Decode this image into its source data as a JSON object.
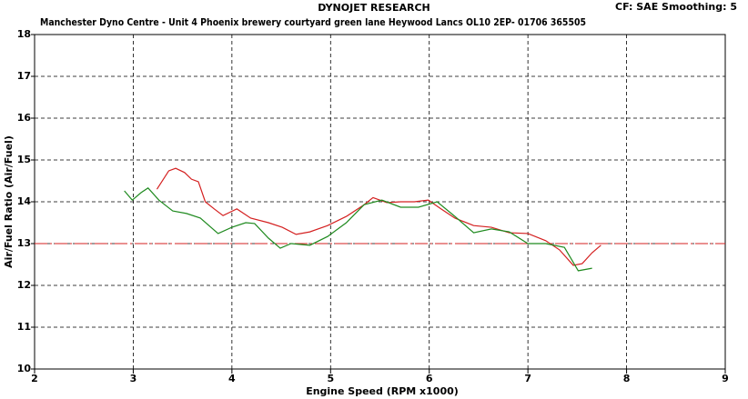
{
  "chart_data": {
    "type": "line",
    "title": "DYNOJET RESEARCH",
    "subtitle": "Manchester Dyno Centre - Unit 4 Phoenix brewery courtyard green lane Heywood Lancs OL10 2EP- 01706 365505",
    "settings_label": "CF: SAE  Smoothing: 5",
    "x_label": "Engine Speed (RPM x1000)",
    "y_label": "Air/Fuel Ratio (Air/Fuel)",
    "xlim": [
      2,
      9
    ],
    "xticks": [
      2,
      3,
      4,
      5,
      6,
      7,
      8,
      9
    ],
    "ylim": [
      10,
      18
    ],
    "yticks": [
      10,
      11,
      12,
      13,
      14,
      15,
      16,
      17,
      18
    ],
    "grid": true,
    "reference_line": {
      "value": 13,
      "color": "#d42020"
    },
    "series": [
      {
        "color": "#d42020",
        "x": [
          3.24,
          3.36,
          3.43,
          3.52,
          3.59,
          3.66,
          3.73,
          3.82,
          3.91,
          4.05,
          4.19,
          4.37,
          4.51,
          4.65,
          4.79,
          4.97,
          5.16,
          5.34,
          5.43,
          5.57,
          5.71,
          5.85,
          5.99,
          6.12,
          6.26,
          6.45,
          6.63,
          6.81,
          7.0,
          7.18,
          7.32,
          7.46,
          7.55,
          7.65,
          7.74
        ],
        "values": [
          14.3,
          14.74,
          14.8,
          14.7,
          14.54,
          14.48,
          14.0,
          13.83,
          13.67,
          13.83,
          13.61,
          13.5,
          13.39,
          13.22,
          13.28,
          13.43,
          13.65,
          13.93,
          14.1,
          13.98,
          14.0,
          14.0,
          14.04,
          13.83,
          13.61,
          13.43,
          13.39,
          13.26,
          13.24,
          13.07,
          12.85,
          12.48,
          12.52,
          12.78,
          12.96
        ]
      },
      {
        "color": "#1f8a1f",
        "x": [
          2.91,
          2.99,
          3.08,
          3.15,
          3.26,
          3.4,
          3.54,
          3.68,
          3.86,
          4.0,
          4.14,
          4.23,
          4.37,
          4.49,
          4.6,
          4.79,
          4.97,
          5.16,
          5.34,
          5.52,
          5.71,
          5.89,
          6.08,
          6.26,
          6.45,
          6.63,
          6.81,
          7.0,
          7.18,
          7.37,
          7.51,
          7.65
        ],
        "values": [
          14.26,
          14.04,
          14.22,
          14.33,
          14.04,
          13.78,
          13.72,
          13.61,
          13.24,
          13.39,
          13.5,
          13.48,
          13.13,
          12.89,
          13.0,
          12.96,
          13.17,
          13.5,
          13.93,
          14.04,
          13.87,
          13.87,
          14.0,
          13.65,
          13.26,
          13.35,
          13.28,
          13.0,
          13.0,
          12.91,
          12.35,
          12.41
        ]
      }
    ]
  }
}
